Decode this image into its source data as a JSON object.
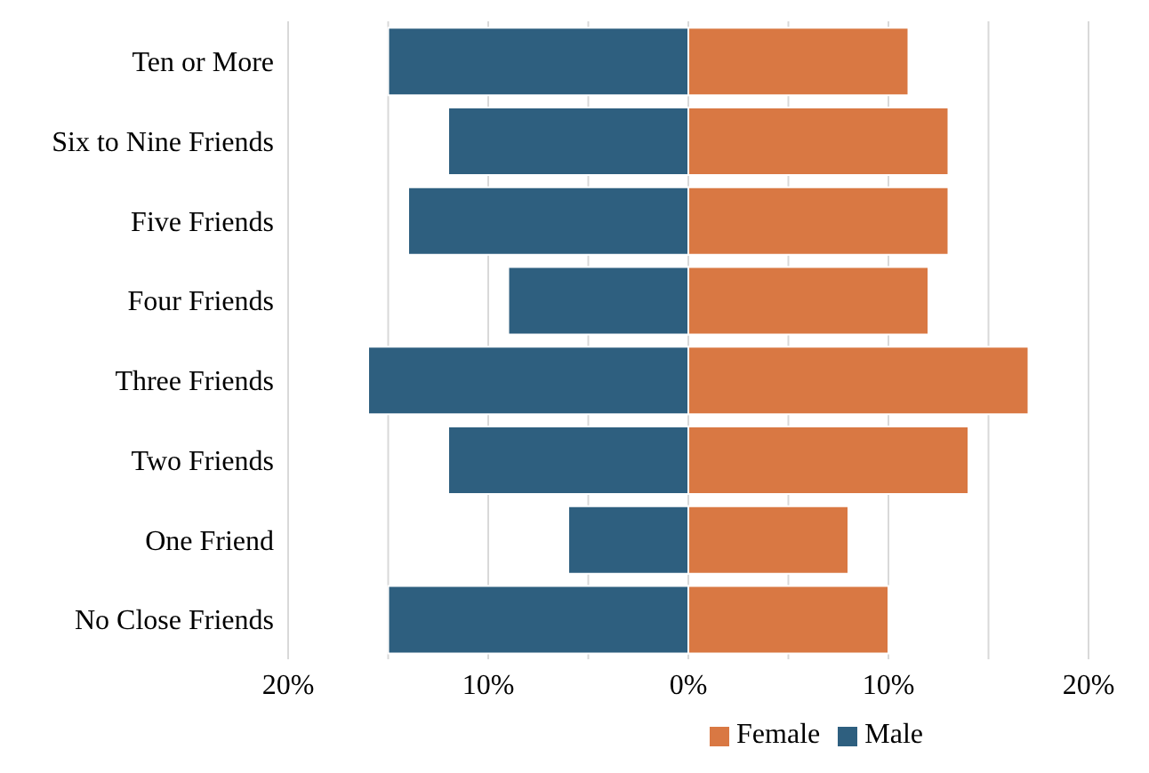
{
  "chart_data": {
    "type": "bar",
    "orientation": "horizontal",
    "stacked": true,
    "categories": [
      "Ten or More",
      "Six to Nine Friends",
      "Five Friends",
      "Four Friends",
      "Three Friends",
      "Two Friends",
      "One Friend",
      "No Close Friends"
    ],
    "series": [
      {
        "name": "Female",
        "color": "#d97843",
        "values": [
          11,
          13,
          13,
          12,
          17,
          14,
          8,
          10
        ]
      },
      {
        "name": "Male",
        "color": "#2e5f7f",
        "values": [
          -15,
          -12,
          -14,
          -9,
          -16,
          -12,
          -6,
          -15
        ]
      }
    ],
    "xlim": [
      -20,
      20
    ],
    "xticks": [
      {
        "value": -20,
        "label": "20%"
      },
      {
        "value": -15,
        "label": null
      },
      {
        "value": -10,
        "label": "10%"
      },
      {
        "value": -5,
        "label": null
      },
      {
        "value": 0,
        "label": "0%"
      },
      {
        "value": 5,
        "label": null
      },
      {
        "value": 10,
        "label": "10%"
      },
      {
        "value": 15,
        "label": null
      },
      {
        "value": 20,
        "label": "20%"
      }
    ],
    "grid": "x",
    "legend": "bottom"
  }
}
